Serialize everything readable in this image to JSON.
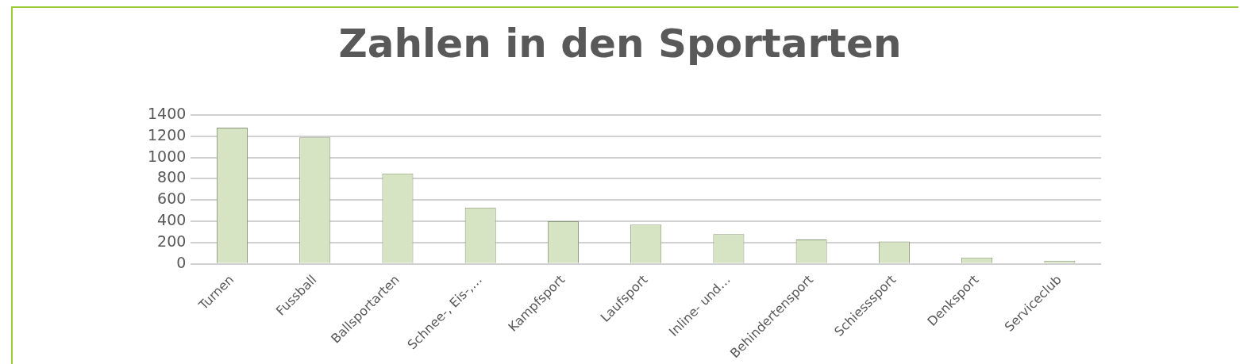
{
  "chart_data": {
    "type": "bar",
    "title": "Zahlen in den Sportarten",
    "categories": [
      "Turnen",
      "Fussball",
      "Ballsportarten",
      "Schnee-, Eis-,…",
      "Kampfsport",
      "Laufsport",
      "Inline- und…",
      "Behindertensport",
      "Schiesssport",
      "Denksport",
      "Serviceclub"
    ],
    "values": [
      1280,
      1190,
      850,
      530,
      400,
      370,
      280,
      230,
      210,
      60,
      30
    ],
    "color": "#d7e4c3",
    "ylim": [
      0,
      1400
    ],
    "yticks": [
      0,
      200,
      400,
      600,
      800,
      1000,
      1200,
      1400
    ],
    "grid": "y"
  }
}
